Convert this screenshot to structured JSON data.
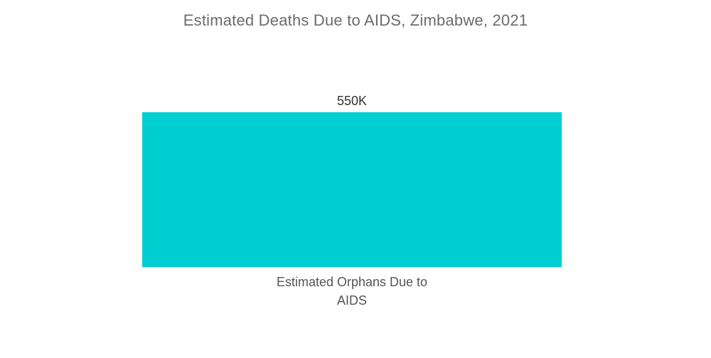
{
  "chart_data": {
    "type": "bar",
    "title": "Estimated Deaths Due to AIDS, Zimbabwe, 2021",
    "categories": [
      "Estimated Orphans Due to AIDS"
    ],
    "category_lines": [
      [
        "Estimated Orphans Due to",
        "AIDS"
      ]
    ],
    "values": [
      550000
    ],
    "data_labels": [
      "550K"
    ],
    "xlabel": "",
    "ylabel": "",
    "ylim": [
      0,
      550000
    ],
    "grid": false,
    "legend": "none",
    "bar_color": "#00ced1"
  }
}
